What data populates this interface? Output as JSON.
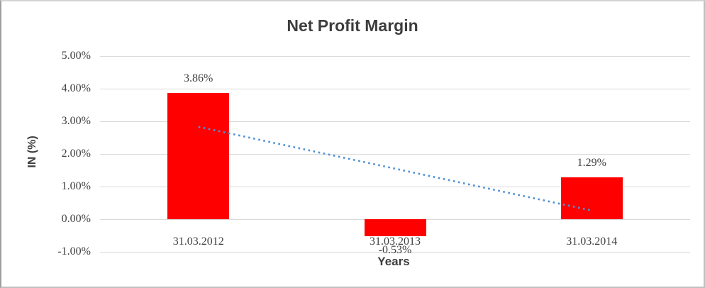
{
  "chart_data": {
    "type": "bar",
    "title": "Net Profit Margin",
    "categories": [
      "31.03.2012",
      "31.03.2013",
      "31.03.2014"
    ],
    "values": [
      3.86,
      -0.53,
      1.29
    ],
    "data_labels": [
      "3.86%",
      "-0.53%",
      "1.29%"
    ],
    "xlabel": "Years",
    "ylabel": "IN (%)",
    "ylim": [
      -1,
      5
    ],
    "yticks": [
      "5.00%",
      "4.00%",
      "3.00%",
      "2.00%",
      "1.00%",
      "0.00%",
      "-1.00%"
    ],
    "grid": true,
    "legend": "none",
    "bar_color": "#FF0000",
    "gridline_color": "#D9D9D9",
    "text_color": "#404040",
    "trendline": {
      "type": "linear",
      "style": "dotted",
      "color": "#5091D5",
      "start_value": 2.83,
      "end_value": 0.26
    }
  }
}
